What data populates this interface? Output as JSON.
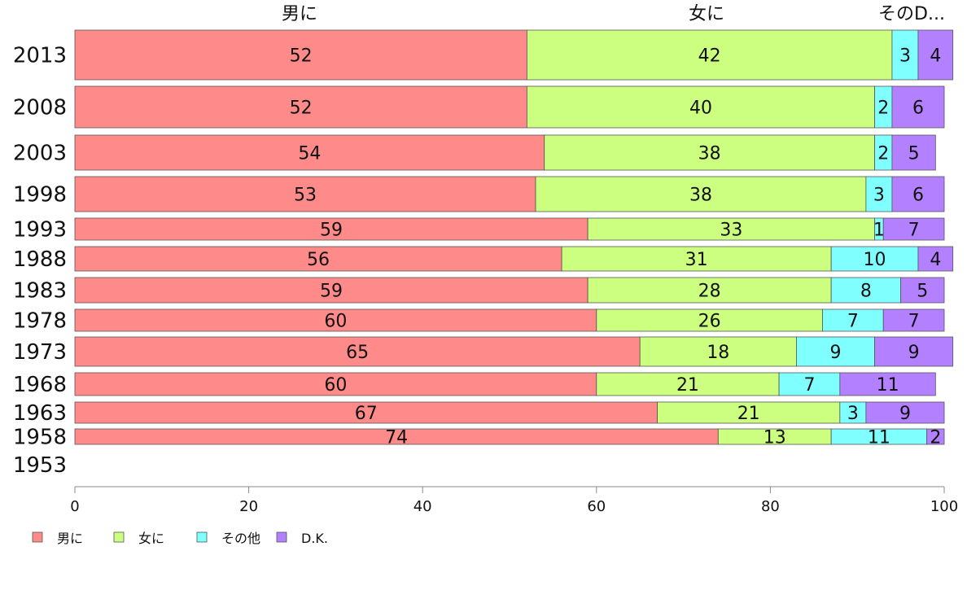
{
  "chart_data": {
    "type": "bar",
    "orientation": "horizontal",
    "stacked": true,
    "categories": [
      "2013",
      "2008",
      "2003",
      "1998",
      "1993",
      "1988",
      "1983",
      "1978",
      "1973",
      "1968",
      "1963",
      "1958",
      "1953"
    ],
    "series": [
      {
        "name": "男に",
        "color": "#ff8a8a",
        "values": [
          52,
          52,
          54,
          53,
          59,
          56,
          59,
          60,
          65,
          60,
          67,
          74,
          null
        ]
      },
      {
        "name": "女に",
        "color": "#ccff80",
        "values": [
          42,
          40,
          38,
          38,
          33,
          31,
          28,
          26,
          18,
          21,
          21,
          13,
          null
        ]
      },
      {
        "name": "その他",
        "color": "#80ffff",
        "values": [
          3,
          2,
          2,
          3,
          1,
          10,
          8,
          7,
          9,
          7,
          3,
          11,
          null
        ]
      },
      {
        "name": "D.K.",
        "color": "#b380ff",
        "values": [
          4,
          6,
          5,
          6,
          7,
          4,
          5,
          7,
          9,
          11,
          9,
          2,
          null
        ]
      }
    ],
    "top_headers": [
      "男に",
      "女に",
      "そのD..."
    ],
    "xlim": [
      0,
      100
    ],
    "xticks": [
      0,
      20,
      40,
      60,
      80,
      100
    ],
    "grid": false,
    "legend_placement": "bottom-left"
  }
}
